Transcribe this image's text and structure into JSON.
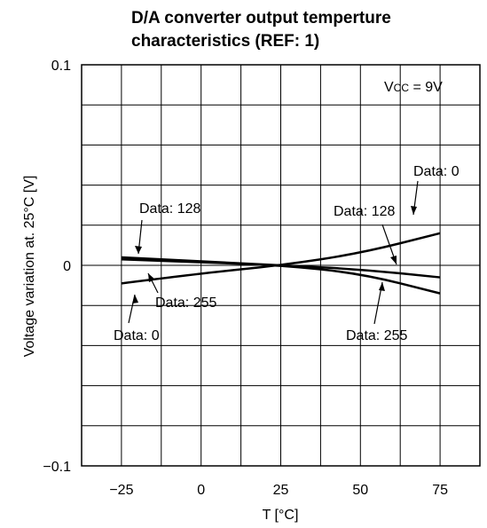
{
  "chart_data": {
    "type": "line",
    "title_lines": [
      "D/A converter output temperture",
      "characteristics (REF: 1)"
    ],
    "xlabel": "T [°C]",
    "ylabel": "Voltage variation at. 25°C [V]",
    "xlim": [
      -37.5,
      87.5
    ],
    "ylim": [
      -0.1,
      0.1
    ],
    "x_ticks": [
      -25,
      0,
      25,
      50,
      75
    ],
    "x_tick_labels": [
      "−25",
      "0",
      "25",
      "50",
      "75"
    ],
    "y_ticks": [
      -0.1,
      0,
      0.1
    ],
    "y_tick_labels": [
      "−0.1",
      "0",
      "0.1"
    ],
    "grid": true,
    "condition": "Vcc = 9V",
    "series": [
      {
        "name": "Data: 0",
        "x": [
          -25,
          0,
          25,
          50,
          75
        ],
        "y": [
          -0.009,
          -0.004,
          0.0,
          0.006,
          0.016
        ]
      },
      {
        "name": "Data: 128",
        "x": [
          -25,
          0,
          25,
          50,
          75
        ],
        "y": [
          0.004,
          0.002,
          0.0,
          -0.002,
          -0.006
        ]
      },
      {
        "name": "Data: 255",
        "x": [
          -25,
          0,
          25,
          50,
          75
        ],
        "y": [
          0.003,
          0.0015,
          0.0,
          -0.004,
          -0.014
        ]
      }
    ],
    "annotations": [
      {
        "text": "Data: 128",
        "series": "Data: 128",
        "side": "left"
      },
      {
        "text": "Data: 255",
        "series": "Data: 255",
        "side": "left"
      },
      {
        "text": "Data: 0",
        "series": "Data: 0",
        "side": "left"
      },
      {
        "text": "Data: 0",
        "series": "Data: 0",
        "side": "right"
      },
      {
        "text": "Data: 128",
        "series": "Data: 128",
        "side": "right"
      },
      {
        "text": "Data: 255",
        "series": "Data: 255",
        "side": "right"
      }
    ]
  }
}
